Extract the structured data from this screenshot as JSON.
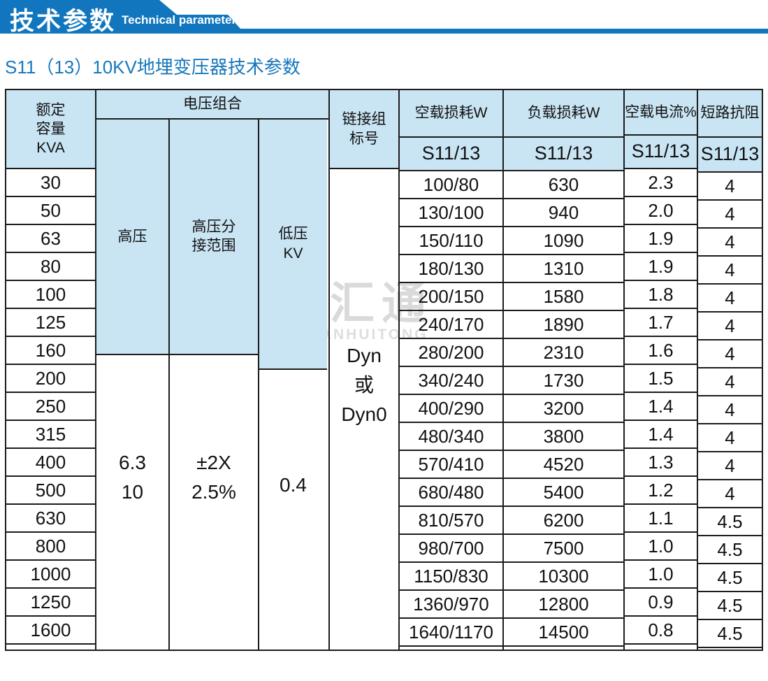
{
  "banner": {
    "title": "技术参数",
    "subtitle": "Technical parameter"
  },
  "page_title": "S11（13）10KV地埋变压器技术参数",
  "watermark": {
    "logo_icon": "interlocked-diamond-logo",
    "name_cn": "创联汇通",
    "name_en": "CHUANGLIANHUITONG"
  },
  "colors": {
    "banner_blue": "#1176bd",
    "title_blue": "#1778bb",
    "table_header_bg": "#c9e4f3",
    "border": "#1c1c1c",
    "watermark_gray": "#dadada"
  },
  "table": {
    "headers": {
      "capacity_lines": [
        "额定",
        "容量",
        "KVA"
      ],
      "voltage_group": "电压组合",
      "hv": "高压",
      "hv_tap_lines": [
        "高压分",
        "接范围"
      ],
      "lv_lines": [
        "低压",
        "KV"
      ],
      "connection_lines": [
        "链接组",
        "标号"
      ],
      "no_load_loss": "空载损耗W",
      "load_loss": "负载损耗W",
      "no_load_current": "空载电流%",
      "impedance": "短路抗阻",
      "series_label": "S11/13"
    },
    "merged_cells": {
      "hv_lines": [
        "6.3",
        "10"
      ],
      "hv_tap_lines": [
        "±2X",
        "2.5%"
      ],
      "lv_value": "0.4",
      "connection_lines": [
        "Dyn",
        "或",
        "Dyn0"
      ]
    },
    "columns": {
      "kva": [
        "30",
        "50",
        "63",
        "80",
        "100",
        "125",
        "160",
        "200",
        "250",
        "315",
        "400",
        "500",
        "630",
        "800",
        "1000",
        "1250",
        "1600"
      ],
      "no_load_loss": [
        "100/80",
        "130/100",
        "150/110",
        "180/130",
        "200/150",
        "240/170",
        "280/200",
        "340/240",
        "400/290",
        "480/340",
        "570/410",
        "680/480",
        "810/570",
        "980/700",
        "1150/830",
        "1360/970",
        "1640/1170"
      ],
      "load_loss": [
        "630",
        "940",
        "1090",
        "1310",
        "1580",
        "1890",
        "2310",
        "1730",
        "3200",
        "3800",
        "4520",
        "5400",
        "6200",
        "7500",
        "10300",
        "12800",
        "14500"
      ],
      "no_load_current": [
        "2.3",
        "2.0",
        "1.9",
        "1.9",
        "1.8",
        "1.7",
        "1.6",
        "1.5",
        "1.4",
        "1.4",
        "1.3",
        "1.2",
        "1.1",
        "1.0",
        "1.0",
        "0.9",
        "0.8"
      ],
      "impedance": [
        "4",
        "4",
        "4",
        "4",
        "4",
        "4",
        "4",
        "4",
        "4",
        "4",
        "4",
        "4",
        "4.5",
        "4.5",
        "4.5",
        "4.5",
        "4.5"
      ]
    }
  }
}
